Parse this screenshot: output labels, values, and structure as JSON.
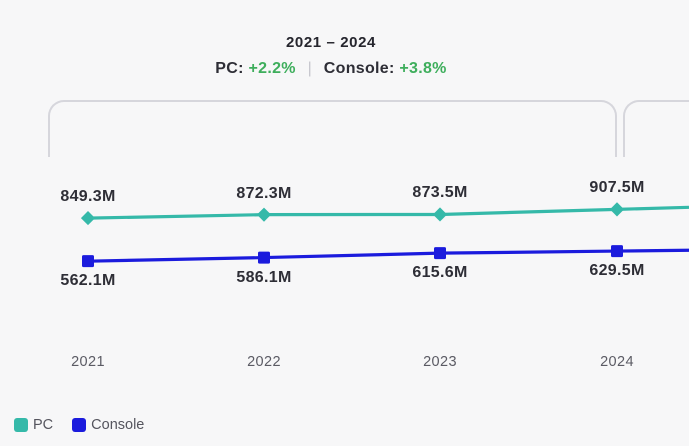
{
  "header": {
    "title": "2021 – 2024",
    "pc_label": "PC:",
    "pc_change": "+2.2%",
    "separator": "|",
    "console_label": "Console:",
    "console_change": "+3.8%"
  },
  "colors": {
    "background": "#f7f7f8",
    "pc_teal": "#35b9a9",
    "console_blue": "#1b1bdd",
    "positive_green": "#3eae5c",
    "dark_text": "#2e2e36",
    "muted_text": "#5b5b64",
    "bracket_gray": "#d6d6dc"
  },
  "legend": {
    "items": [
      {
        "label": "PC",
        "color": "#35b9a9"
      },
      {
        "label": "Console",
        "color": "#1b1bdd"
      }
    ]
  },
  "chart_data": {
    "type": "line",
    "title": "2021 – 2024",
    "subtitle": "PC: +2.2% | Console: +3.8%",
    "categories": [
      "2021",
      "2022",
      "2023",
      "2024"
    ],
    "series": [
      {
        "name": "PC",
        "color": "#35b9a9",
        "marker": "diamond",
        "values_millions": [
          849.3,
          872.3,
          873.5,
          907.5
        ],
        "labels": [
          "849.3M",
          "872.3M",
          "873.5M",
          "907.5M"
        ],
        "change": "+2.2%"
      },
      {
        "name": "Console",
        "color": "#1b1bdd",
        "marker": "square",
        "values_millions": [
          562.1,
          586.1,
          615.6,
          629.5
        ],
        "labels": [
          "562.1M",
          "586.1M",
          "615.6M",
          "629.5M"
        ],
        "change": "+3.8%"
      }
    ],
    "ylim": [
      540,
      930
    ],
    "grid": false,
    "data_labels": true,
    "legend_position": "bottom-left",
    "notes": "range bracket drawn above plot spanning 2021-2024; a second bracket begins at right edge (cropped); both lines continue past right crop"
  }
}
